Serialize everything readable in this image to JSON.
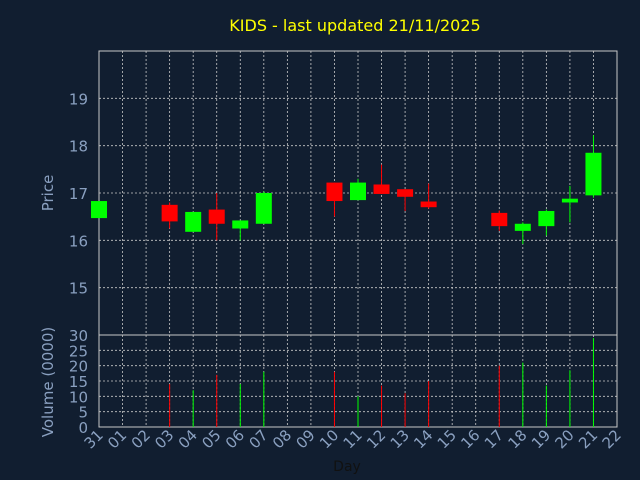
{
  "chart_data": [
    {
      "type": "candlestick",
      "title": "KIDS - last updated 21/11/2025",
      "ylabel": "Price",
      "ylim": [
        14,
        20
      ],
      "yticks": [
        15,
        16,
        17,
        18,
        19
      ],
      "grid": true,
      "colors": {
        "up": "#00ff00",
        "down": "#ff0000",
        "title": "#ffff00",
        "axis_text": "#8aa0c0",
        "grid": "#c8c8c8",
        "background": "#111e30"
      },
      "ohlc": [
        {
          "day": "31",
          "open": 16.47,
          "high": 16.83,
          "low": 16.47,
          "close": 16.83
        },
        {
          "day": "03",
          "open": 16.75,
          "high": 16.8,
          "low": 16.25,
          "close": 16.4
        },
        {
          "day": "04",
          "open": 16.18,
          "high": 16.6,
          "low": 16.18,
          "close": 16.6
        },
        {
          "day": "05",
          "open": 16.65,
          "high": 17.0,
          "low": 16.0,
          "close": 16.35
        },
        {
          "day": "06",
          "open": 16.25,
          "high": 16.42,
          "low": 16.0,
          "close": 16.42
        },
        {
          "day": "07",
          "open": 16.35,
          "high": 17.03,
          "low": 16.35,
          "close": 17.0
        },
        {
          "day": "10",
          "open": 17.22,
          "high": 17.22,
          "low": 16.5,
          "close": 16.83
        },
        {
          "day": "11",
          "open": 16.85,
          "high": 17.3,
          "low": 16.85,
          "close": 17.22
        },
        {
          "day": "12",
          "open": 17.18,
          "high": 17.6,
          "low": 16.98,
          "close": 16.98
        },
        {
          "day": "13",
          "open": 17.08,
          "high": 17.08,
          "low": 16.62,
          "close": 16.92
        },
        {
          "day": "14",
          "open": 16.82,
          "high": 17.2,
          "low": 16.67,
          "close": 16.7
        },
        {
          "day": "17",
          "open": 16.58,
          "high": 16.63,
          "low": 16.2,
          "close": 16.3
        },
        {
          "day": "18",
          "open": 16.2,
          "high": 16.38,
          "low": 15.92,
          "close": 16.35
        },
        {
          "day": "19",
          "open": 16.3,
          "high": 16.65,
          "low": 16.1,
          "close": 16.62
        },
        {
          "day": "20",
          "open": 16.8,
          "high": 17.15,
          "low": 16.38,
          "close": 16.88
        },
        {
          "day": "21",
          "open": 16.95,
          "high": 18.22,
          "low": 16.9,
          "close": 17.85
        }
      ]
    },
    {
      "type": "bar",
      "ylabel": "Volume (0000)",
      "xlabel": "Day",
      "ylim": [
        0,
        30
      ],
      "yticks": [
        0,
        5,
        10,
        15,
        20,
        25,
        30
      ],
      "grid": true,
      "categories": [
        "31",
        "01",
        "02",
        "03",
        "04",
        "05",
        "06",
        "07",
        "08",
        "09",
        "10",
        "11",
        "12",
        "13",
        "14",
        "15",
        "16",
        "17",
        "18",
        "19",
        "20",
        "21",
        "22"
      ],
      "volume": [
        {
          "day": "03",
          "value": 14,
          "dir": "down"
        },
        {
          "day": "04",
          "value": 12,
          "dir": "up"
        },
        {
          "day": "05",
          "value": 17,
          "dir": "down"
        },
        {
          "day": "06",
          "value": 14,
          "dir": "up"
        },
        {
          "day": "07",
          "value": 18,
          "dir": "up"
        },
        {
          "day": "10",
          "value": 18,
          "dir": "down"
        },
        {
          "day": "11",
          "value": 10,
          "dir": "up"
        },
        {
          "day": "12",
          "value": 13.5,
          "dir": "down"
        },
        {
          "day": "13",
          "value": 11,
          "dir": "down"
        },
        {
          "day": "14",
          "value": 15,
          "dir": "down"
        },
        {
          "day": "17",
          "value": 20,
          "dir": "down"
        },
        {
          "day": "18",
          "value": 21,
          "dir": "up"
        },
        {
          "day": "19",
          "value": 13.5,
          "dir": "up"
        },
        {
          "day": "20",
          "value": 18.5,
          "dir": "up"
        },
        {
          "day": "21",
          "value": 29,
          "dir": "up"
        }
      ]
    }
  ]
}
